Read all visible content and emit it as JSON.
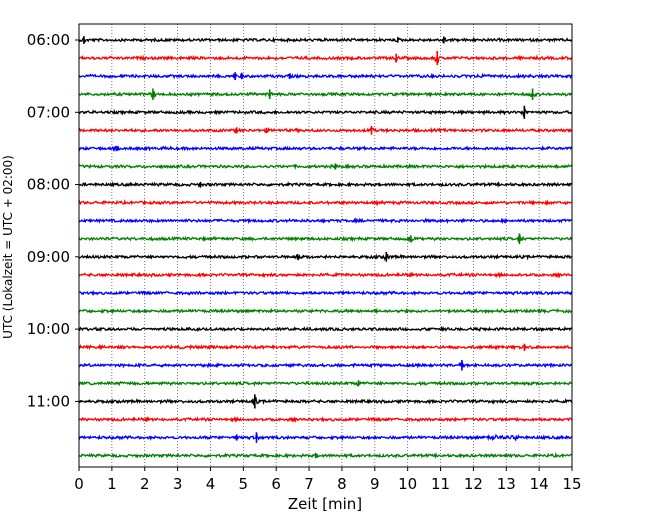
{
  "chart_data": {
    "type": "line",
    "title": "",
    "xlabel": "Zeit  [min]",
    "ylabel": "UTC (Lokalzeit = UTC + 02:00)",
    "xlim": [
      0,
      15
    ],
    "x_ticks": [
      "0",
      "1",
      "2",
      "3",
      "4",
      "5",
      "6",
      "7",
      "8",
      "9",
      "10",
      "11",
      "12",
      "13",
      "14",
      "15"
    ],
    "y_tick_labels": [
      "06:00",
      "07:00",
      "08:00",
      "09:00",
      "10:00",
      "11:00"
    ],
    "grid": "vertical dotted",
    "row_start_times": [
      "06:00",
      "06:15",
      "06:30",
      "06:45",
      "07:00",
      "07:15",
      "07:30",
      "07:45",
      "08:00",
      "08:15",
      "08:30",
      "08:45",
      "09:00",
      "09:15",
      "09:30",
      "09:45",
      "10:00",
      "10:15",
      "10:30",
      "10:45",
      "11:00",
      "11:15",
      "11:30",
      "11:45"
    ],
    "colors": [
      "#000000",
      "#ff0000",
      "#0000ff",
      "#008000"
    ],
    "events": [
      {
        "row": 0,
        "x": 0.15,
        "a": 1.8
      },
      {
        "row": 0,
        "x": 9.7,
        "a": 1.2
      },
      {
        "row": 0,
        "x": 11.1,
        "a": 1.6
      },
      {
        "row": 1,
        "x": 9.65,
        "a": 2.0
      },
      {
        "row": 1,
        "x": 10.9,
        "a": 3.2
      },
      {
        "row": 2,
        "x": 4.75,
        "a": 1.8
      },
      {
        "row": 2,
        "x": 4.95,
        "a": 1.4
      },
      {
        "row": 2,
        "x": 6.4,
        "a": 1.2
      },
      {
        "row": 3,
        "x": 2.25,
        "a": 2.6
      },
      {
        "row": 3,
        "x": 5.8,
        "a": 2.2
      },
      {
        "row": 3,
        "x": 13.8,
        "a": 2.6
      },
      {
        "row": 4,
        "x": 13.55,
        "a": 3.0
      },
      {
        "row": 5,
        "x": 4.8,
        "a": 1.4
      },
      {
        "row": 5,
        "x": 5.7,
        "a": 1.2
      },
      {
        "row": 5,
        "x": 8.9,
        "a": 2.0
      },
      {
        "row": 6,
        "x": 1.15,
        "a": 1.2
      },
      {
        "row": 7,
        "x": 7.8,
        "a": 1.4
      },
      {
        "row": 8,
        "x": 3.7,
        "a": 1.2
      },
      {
        "row": 11,
        "x": 10.1,
        "a": 1.6
      },
      {
        "row": 11,
        "x": 13.4,
        "a": 2.4
      },
      {
        "row": 12,
        "x": 9.35,
        "a": 2.2
      },
      {
        "row": 12,
        "x": 6.65,
        "a": 1.3
      },
      {
        "row": 17,
        "x": 13.55,
        "a": 1.6
      },
      {
        "row": 18,
        "x": 11.65,
        "a": 2.4
      },
      {
        "row": 19,
        "x": 8.5,
        "a": 1.4
      },
      {
        "row": 20,
        "x": 5.35,
        "a": 3.2
      },
      {
        "row": 22,
        "x": 5.4,
        "a": 2.4
      },
      {
        "row": 22,
        "x": 4.8,
        "a": 1.4
      },
      {
        "row": 23,
        "x": 7.2,
        "a": 1.2
      }
    ],
    "bursts": [
      {
        "row": 22,
        "from": 12.4,
        "to": 13.4,
        "a": 2.2
      },
      {
        "row": 2,
        "from": 12.2,
        "to": 15.0,
        "a": 1.4
      },
      {
        "row": 2,
        "from": 6.9,
        "to": 9.4,
        "a": 1.2
      },
      {
        "row": 11,
        "from": 9.9,
        "to": 10.6,
        "a": 1.4
      }
    ]
  }
}
